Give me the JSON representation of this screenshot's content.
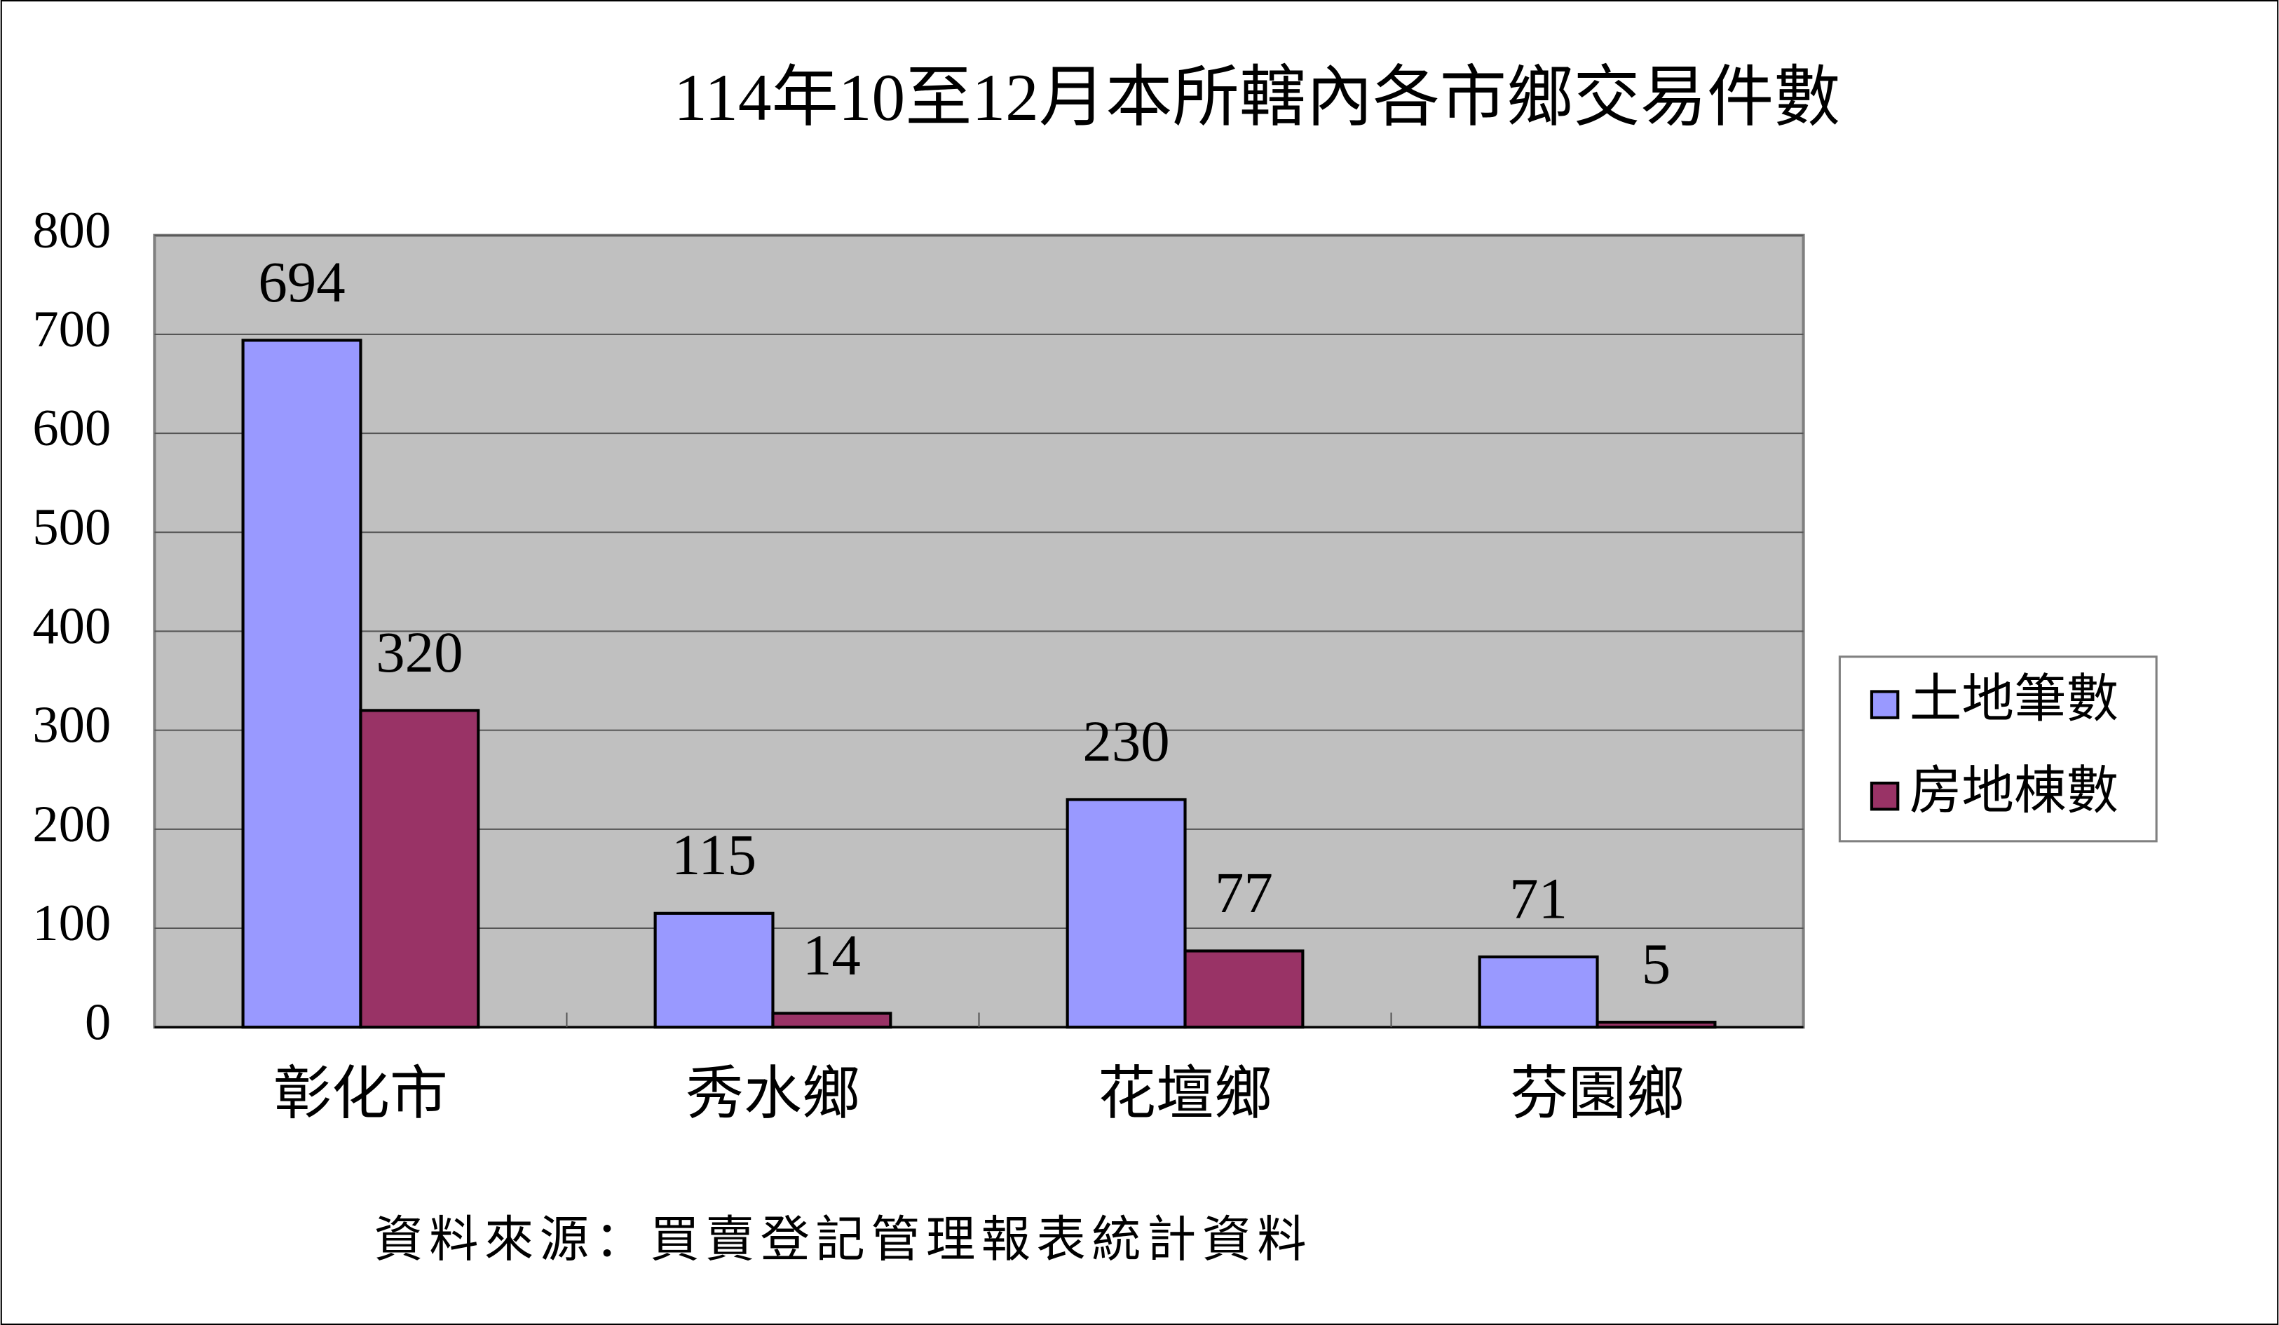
{
  "chart_data": {
    "type": "bar",
    "title": "114年10至12月本所轄內各市鄉交易件數",
    "footnote": "資料來源：買賣登記管理報表統計資料",
    "categories": [
      "彰化市",
      "秀水鄉",
      "花壇鄉",
      "芬園鄉"
    ],
    "series": [
      {
        "name": "土地筆數",
        "color": "#9999ff",
        "values": [
          694,
          115,
          230,
          71
        ]
      },
      {
        "name": "房地棟數",
        "color": "#993366",
        "values": [
          320,
          14,
          77,
          5
        ]
      }
    ],
    "ylim": [
      0,
      800
    ],
    "yticks": [
      0,
      100,
      200,
      300,
      400,
      500,
      600,
      700,
      800
    ],
    "grid": true,
    "legend": "right",
    "plot_background": "#c0c0c0"
  }
}
